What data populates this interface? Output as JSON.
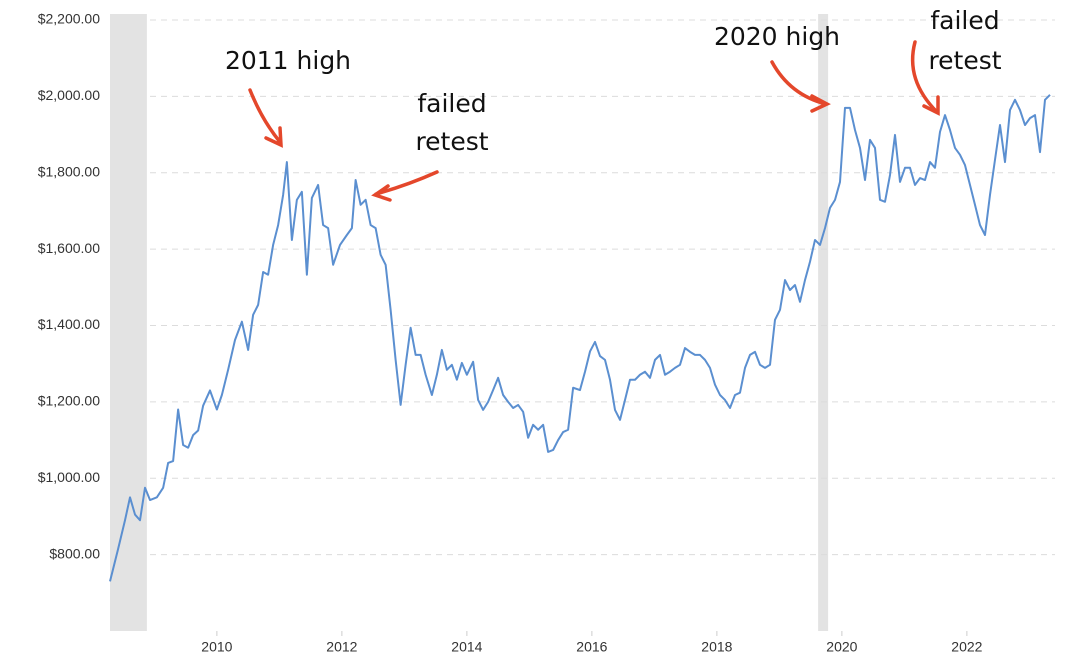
{
  "chart_data": {
    "type": "line",
    "color": "#5b8fd0",
    "shade_color": "#e3e3e3",
    "arrow_color": "#e4472b",
    "x": [
      2008.29,
      2008.42,
      2008.53,
      2008.61,
      2008.69,
      2008.77,
      2008.85,
      2008.93,
      2009.04,
      2009.14,
      2009.22,
      2009.3,
      2009.38,
      2009.46,
      2009.54,
      2009.62,
      2009.7,
      2009.78,
      2009.89,
      2010.0,
      2010.08,
      2010.18,
      2010.29,
      2010.4,
      2010.5,
      2010.58,
      2010.66,
      2010.74,
      2010.82,
      2010.9,
      2010.98,
      2011.06,
      2011.12,
      2011.2,
      2011.28,
      2011.36,
      2011.44,
      2011.52,
      2011.62,
      2011.7,
      2011.78,
      2011.86,
      2011.97,
      2012.08,
      2012.16,
      2012.22,
      2012.3,
      2012.38,
      2012.46,
      2012.54,
      2012.62,
      2012.7,
      2012.78,
      2012.86,
      2012.94,
      2013.02,
      2013.1,
      2013.18,
      2013.26,
      2013.34,
      2013.44,
      2013.52,
      2013.6,
      2013.68,
      2013.76,
      2013.84,
      2013.92,
      2014.0,
      2014.1,
      2014.18,
      2014.26,
      2014.34,
      2014.42,
      2014.5,
      2014.58,
      2014.66,
      2014.74,
      2014.82,
      2014.9,
      2014.98,
      2015.06,
      2015.14,
      2015.22,
      2015.3,
      2015.38,
      2015.46,
      2015.54,
      2015.62,
      2015.7,
      2015.81,
      2015.89,
      2015.97,
      2016.05,
      2016.13,
      2016.21,
      2016.29,
      2016.37,
      2016.45,
      2016.53,
      2016.61,
      2016.69,
      2016.77,
      2016.85,
      2016.93,
      2017.01,
      2017.09,
      2017.17,
      2017.25,
      2017.33,
      2017.41,
      2017.49,
      2017.57,
      2017.65,
      2017.73,
      2017.81,
      2017.89,
      2017.97,
      2018.05,
      2018.13,
      2018.21,
      2018.29,
      2018.37,
      2018.45,
      2018.53,
      2018.61,
      2018.69,
      2018.77,
      2018.85,
      2018.93,
      2019.01,
      2019.09,
      2019.17,
      2019.25,
      2019.33,
      2019.41,
      2019.49,
      2019.57,
      2019.65,
      2019.73,
      2019.81,
      2019.89,
      2019.97,
      2020.05,
      2020.13,
      2020.21,
      2020.29,
      2020.37,
      2020.45,
      2020.53,
      2020.61,
      2020.69,
      2020.77,
      2020.85,
      2020.93,
      2021.01,
      2021.09,
      2021.17,
      2021.25,
      2021.33,
      2021.41,
      2021.49,
      2021.57,
      2021.65,
      2021.73,
      2021.81,
      2021.89,
      2021.97,
      2022.05,
      2022.13,
      2022.21,
      2022.29,
      2022.37,
      2022.45,
      2022.53,
      2022.61,
      2022.69,
      2022.77,
      2022.85,
      2022.93,
      2023.01,
      2023.09,
      2023.17,
      2023.25,
      2023.33
    ],
    "values": [
      730,
      815,
      890,
      950,
      905,
      890,
      975,
      943,
      950,
      975,
      1040,
      1045,
      1180,
      1087,
      1080,
      1113,
      1125,
      1190,
      1230,
      1180,
      1218,
      1284,
      1362,
      1410,
      1336,
      1428,
      1454,
      1540,
      1533,
      1611,
      1663,
      1742,
      1828,
      1624,
      1729,
      1750,
      1533,
      1734,
      1768,
      1663,
      1655,
      1559,
      1611,
      1637,
      1655,
      1781,
      1716,
      1729,
      1663,
      1655,
      1585,
      1559,
      1441,
      1310,
      1192,
      1297,
      1394,
      1323,
      1323,
      1271,
      1218,
      1271,
      1336,
      1284,
      1297,
      1258,
      1302,
      1271,
      1305,
      1205,
      1179,
      1200,
      1231,
      1263,
      1218,
      1200,
      1184,
      1192,
      1174,
      1106,
      1140,
      1127,
      1140,
      1069,
      1074,
      1100,
      1121,
      1127,
      1237,
      1231,
      1279,
      1332,
      1357,
      1320,
      1310,
      1258,
      1179,
      1153,
      1205,
      1258,
      1258,
      1271,
      1279,
      1263,
      1310,
      1323,
      1271,
      1279,
      1289,
      1297,
      1341,
      1331,
      1323,
      1323,
      1310,
      1289,
      1245,
      1218,
      1205,
      1184,
      1218,
      1224,
      1289,
      1323,
      1331,
      1297,
      1289,
      1297,
      1415,
      1441,
      1519,
      1493,
      1506,
      1462,
      1519,
      1567,
      1624,
      1611,
      1655,
      1708,
      1729,
      1776,
      1970,
      1970,
      1912,
      1865,
      1781,
      1886,
      1865,
      1729,
      1724,
      1794,
      1899,
      1776,
      1813,
      1813,
      1768,
      1786,
      1781,
      1828,
      1813,
      1907,
      1951,
      1912,
      1865,
      1847,
      1820,
      1768,
      1716,
      1663,
      1637,
      1742,
      1834,
      1925,
      1828,
      1964,
      1991,
      1964,
      1925,
      1943,
      1951,
      1854,
      1991,
      2004
    ],
    "xlim": [
      2008.29,
      2023.41
    ],
    "xticks": [
      2010,
      2012,
      2014,
      2016,
      2018,
      2020,
      2022
    ],
    "ylim": [
      600,
      2200
    ],
    "yticks": [
      {
        "value": 800,
        "label": "$800.00"
      },
      {
        "value": 1000,
        "label": "$1,000.00"
      },
      {
        "value": 1200,
        "label": "$1,200.00"
      },
      {
        "value": 1400,
        "label": "$1,400.00"
      },
      {
        "value": 1600,
        "label": "$1,600.00"
      },
      {
        "value": 1800,
        "label": "$1,800.00"
      },
      {
        "value": 2000,
        "label": "$2,000.00"
      },
      {
        "value": 2200,
        "label": "$2,200.00"
      }
    ],
    "grid": true,
    "shaded_periods": [
      [
        2008.29,
        2008.88
      ],
      [
        2019.62,
        2019.78
      ]
    ],
    "annotations": [
      {
        "lines": [
          "2011 high"
        ]
      },
      {
        "lines": [
          "failed",
          "retest"
        ]
      },
      {
        "lines": [
          "2020 high"
        ]
      },
      {
        "lines": [
          "failed",
          "retest"
        ]
      }
    ]
  }
}
